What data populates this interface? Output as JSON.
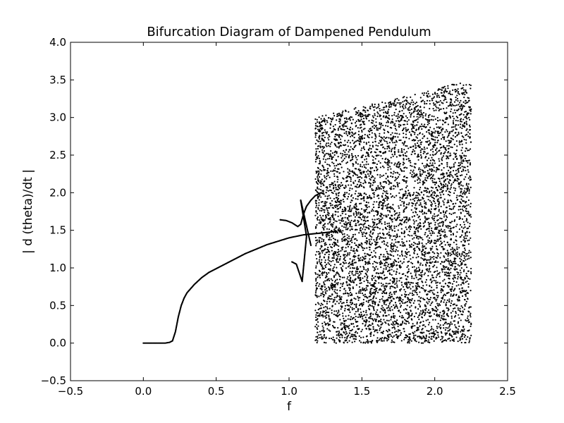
{
  "chart_data": {
    "type": "scatter",
    "title": "Bifurcation Diagram of Dampened Pendulum",
    "xlabel": "f",
    "ylabel": "| d (theta)/dt |",
    "xlim": [
      -0.5,
      2.5
    ],
    "ylim": [
      -0.5,
      4.0
    ],
    "xticks": [
      -0.5,
      0.0,
      0.5,
      1.0,
      1.5,
      2.0,
      2.5
    ],
    "xtick_labels": [
      "−0.5",
      "0.0",
      "0.5",
      "1.0",
      "1.5",
      "2.0",
      "2.5"
    ],
    "yticks": [
      -0.5,
      0.0,
      0.5,
      1.0,
      1.5,
      2.0,
      2.5,
      3.0,
      3.5,
      4.0
    ],
    "ytick_labels": [
      "−0.5",
      "0.0",
      "0.5",
      "1.0",
      "1.5",
      "2.0",
      "2.5",
      "3.0",
      "3.5",
      "4.0"
    ],
    "grid": false,
    "legend": "none",
    "marker_color": "#000000",
    "series": [
      {
        "points": [
          [
            0.0,
            0.0
          ],
          [
            0.05,
            0.0
          ],
          [
            0.1,
            0.0
          ],
          [
            0.15,
            0.0
          ],
          [
            0.18,
            0.01
          ],
          [
            0.2,
            0.03
          ],
          [
            0.22,
            0.15
          ],
          [
            0.24,
            0.35
          ],
          [
            0.26,
            0.5
          ],
          [
            0.28,
            0.6
          ],
          [
            0.3,
            0.67
          ],
          [
            0.35,
            0.78
          ],
          [
            0.4,
            0.87
          ],
          [
            0.45,
            0.94
          ],
          [
            0.5,
            0.99
          ],
          [
            0.55,
            1.04
          ],
          [
            0.6,
            1.09
          ],
          [
            0.65,
            1.14
          ],
          [
            0.7,
            1.19
          ],
          [
            0.75,
            1.23
          ],
          [
            0.8,
            1.27
          ],
          [
            0.85,
            1.31
          ],
          [
            0.9,
            1.34
          ],
          [
            0.95,
            1.37
          ],
          [
            1.0,
            1.4
          ],
          [
            1.05,
            1.42
          ],
          [
            1.1,
            1.44
          ],
          [
            1.15,
            1.45
          ],
          [
            1.2,
            1.46
          ],
          [
            1.25,
            1.47
          ],
          [
            1.3,
            1.48
          ],
          [
            1.35,
            1.48
          ]
        ]
      },
      {
        "points": [
          [
            0.94,
            1.64
          ],
          [
            0.98,
            1.63
          ],
          [
            1.02,
            1.6
          ],
          [
            1.06,
            1.55
          ],
          [
            1.08,
            1.58
          ],
          [
            1.1,
            1.72
          ],
          [
            1.12,
            1.82
          ],
          [
            1.15,
            1.9
          ],
          [
            1.18,
            1.96
          ],
          [
            1.2,
            1.98
          ],
          [
            1.22,
            2.0
          ],
          [
            1.24,
            1.98
          ]
        ]
      },
      {
        "points": [
          [
            1.02,
            1.08
          ],
          [
            1.05,
            1.05
          ],
          [
            1.09,
            0.82
          ],
          [
            1.12,
            1.42
          ],
          [
            1.08,
            1.9
          ],
          [
            1.15,
            1.3
          ]
        ]
      },
      {
        "scatter_region": {
          "x_range": [
            1.18,
            2.25
          ],
          "y_min": 0.0,
          "y_max_at_x_min": 3.0,
          "y_max_at_x_max": 3.5,
          "approx_point_count": 6000
        }
      }
    ]
  }
}
